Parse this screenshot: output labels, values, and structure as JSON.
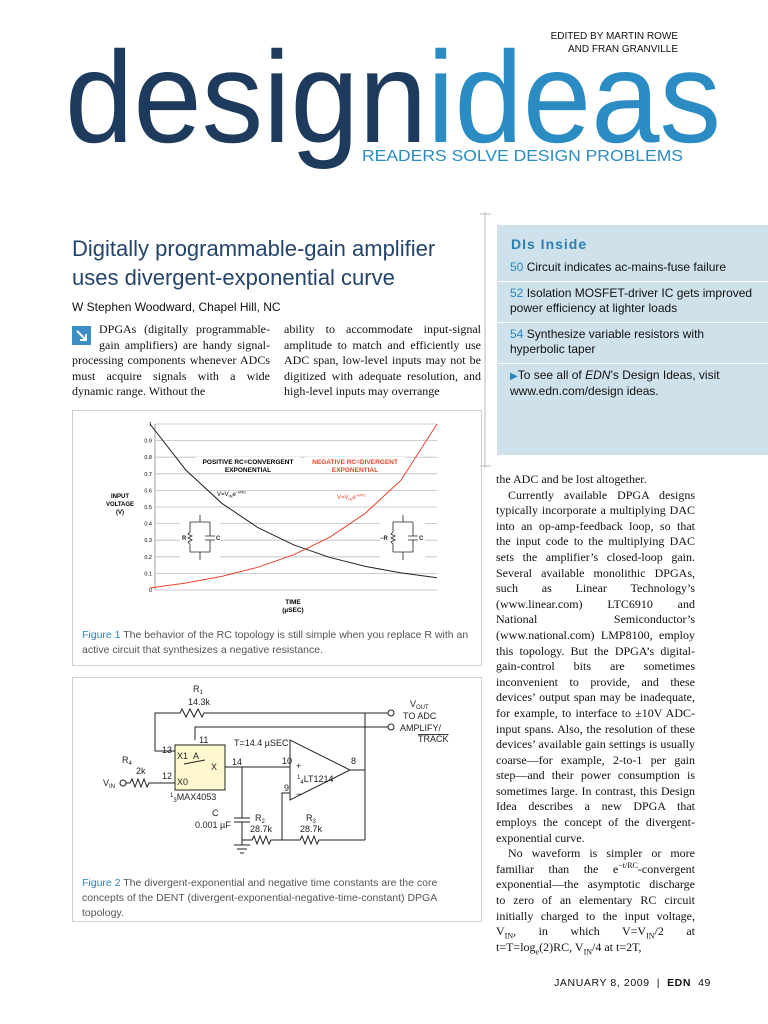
{
  "header": {
    "editors": [
      "EDITED BY MARTIN ROWE",
      "AND FRAN GRANVILLE"
    ],
    "logo": [
      "design",
      "ideas"
    ],
    "tagline": "READERS SOLVE DESIGN PROBLEMS"
  },
  "article": {
    "title": [
      "Digitally programmable-gain amplifier",
      "uses divergent-exponential curve"
    ],
    "byline": "W Stephen Woodward, Chapel Hill, NC",
    "column1": "DPGAs (digitally programmable-gain amplifiers) are handy signal-processing components whenever ADCs must acquire signals with a wide dynamic range. Without the",
    "column2": "ability to accommodate input-signal amplitude to match and efficiently use ADC span, low-level inputs may not be digitized with adequate resolution, and high-level inputs may overrange",
    "column3": [
      "the ADC and be lost altogether.",
      "Currently available DPGA designs typically incorporate a multiplying DAC into an op-amp-feedback loop, so that the input code to the multiplying DAC sets the amplifier’s closed-loop gain. Several available monolithic DPGAs, such as Linear Technology’s (www.linear.com) LTC6910 and National Semiconductor’s (www.national.com) LMP8100, employ this topology. But the DPGA’s digital-gain-control bits are sometimes inconvenient to provide, and these devices’ output span may be inadequate, for example, to interface to ±10V ADC-input spans. Also, the resolution of these devices’ available gain settings is usually coarse—for example, 2-to-1 per gain step—and their power consumption is sometimes large. In contrast, this Design Idea describes a new DPGA that employs the concept of the divergent-exponential curve.",
      [
        "No waveform is simpler or more familiar than the e",
        "−t/RC",
        "-convergent exponential—the asymptotic discharge to zero of an elementary RC circuit initially charged to the input voltage, V",
        "IN",
        ", in which V=V",
        "IN",
        "/2 at t=T=log",
        "e",
        "(2)RC, V",
        "IN",
        "/4 at t=2T,"
      ]
    ]
  },
  "sidebar": {
    "heading": "DIs Inside",
    "items": [
      {
        "page": "50",
        "text": " Circuit indicates ac-mains-fuse failure"
      },
      {
        "page": "52",
        "text": " Isolation MOSFET-driver IC gets improved power efficiency at lighter loads"
      },
      {
        "page": "54",
        "text": " Synthesize variable resistors with hyperbolic taper"
      }
    ],
    "more": [
      "To see all of ",
      "EDN",
      "’s Design Ideas, visit www.edn.com/design ideas."
    ]
  },
  "figures": [
    {
      "label": "Figure 1",
      "caption": " The behavior of the RC topology is still simple when you replace R with an active circuit that synthesizes a negative resistance.",
      "chart": {
        "ylabel": [
          "INPUT",
          "VOLTAGE",
          "(V)"
        ],
        "xlabel": [
          "TIME",
          "(µSEC)"
        ],
        "yticks": [
          "1",
          "0.9",
          "0.8",
          "0.7",
          "0.6",
          "0.5",
          "0.4",
          "0.3",
          "0.2",
          "0.1",
          "0"
        ],
        "positive_label": [
          "POSITIVE RC=CONVERGENT",
          "EXPONENTIAL"
        ],
        "negative_label": [
          "NEGATIVE RC=DIVERGENT",
          "EXPONENTIAL"
        ],
        "positive_eq": [
          "V=V",
          "IN",
          "e",
          "−t/RC"
        ],
        "negative_eq": [
          "V=V",
          "IN",
          "e",
          "+t/RC"
        ],
        "left_circuit": [
          "R",
          "C"
        ],
        "right_circuit": [
          "−R",
          "C"
        ]
      }
    },
    {
      "label": "Figure 2",
      "caption": " The divergent-exponential and negative time constants are the core concepts of the DENT (divergent-exponential-negative-time-constant) DPGA topology.",
      "schematic": {
        "r1": [
          "R",
          "1",
          "14.3k"
        ],
        "vout": [
          "V",
          "OUT",
          "TO ADC"
        ],
        "control": [
          "AMPLIFY/",
          "TRACK"
        ],
        "timing": "T=14.4 µSEC",
        "switch_pins": [
          "11",
          "13",
          "12",
          "14"
        ],
        "switch_labels": [
          "X1",
          "A",
          "X",
          "X0"
        ],
        "switch_part": [
          "1",
          "3",
          "MAX4053"
        ],
        "r4": [
          "R",
          "4",
          "2k"
        ],
        "vin": [
          "V",
          "IN"
        ],
        "cap": [
          "C",
          "0.001 µF"
        ],
        "r2": [
          "R",
          "2",
          "28.7k"
        ],
        "r3": [
          "R",
          "3",
          "28.7k"
        ],
        "opamp_pins": [
          "10",
          "9",
          "8"
        ],
        "opamp_signs": [
          "+",
          "−"
        ],
        "opamp_part": [
          "1",
          "4",
          "LT1214"
        ]
      }
    }
  ],
  "footer": {
    "date": "JANUARY 8, 2009",
    "separator": "|",
    "magazine": "EDN",
    "page": "49"
  }
}
